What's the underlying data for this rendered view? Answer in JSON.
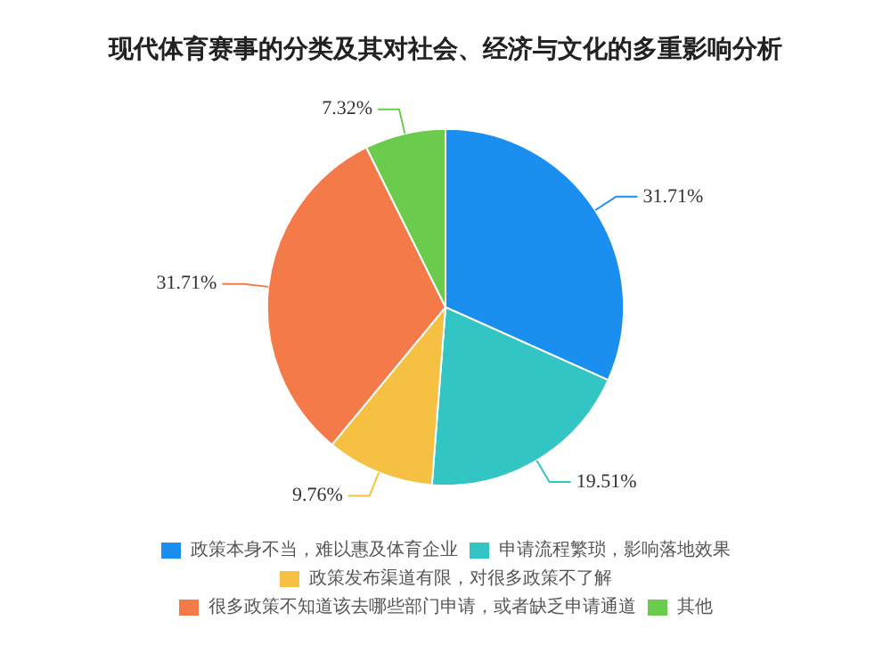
{
  "chart_data": {
    "type": "pie",
    "title": "现代体育赛事的分类及其对社会、经济与文化的多重影响分析",
    "categories": [
      "政策本身不当，难以惠及体育企业",
      "申请流程繁琐，影响落地效果",
      "政策发布渠道有限，对很多政策不了解",
      "很多政策不知道该去哪些部门申请，或者缺乏申请通道",
      "其他"
    ],
    "values": [
      31.71,
      19.51,
      9.76,
      31.71,
      7.32
    ],
    "value_labels": [
      "31.71%",
      "19.51%",
      "9.76%",
      "31.71%",
      "7.32%"
    ],
    "colors": [
      "#1a8ff0",
      "#33c4c4",
      "#f6c142",
      "#f47a4a",
      "#6bcb4c"
    ],
    "legend": "bottom"
  }
}
